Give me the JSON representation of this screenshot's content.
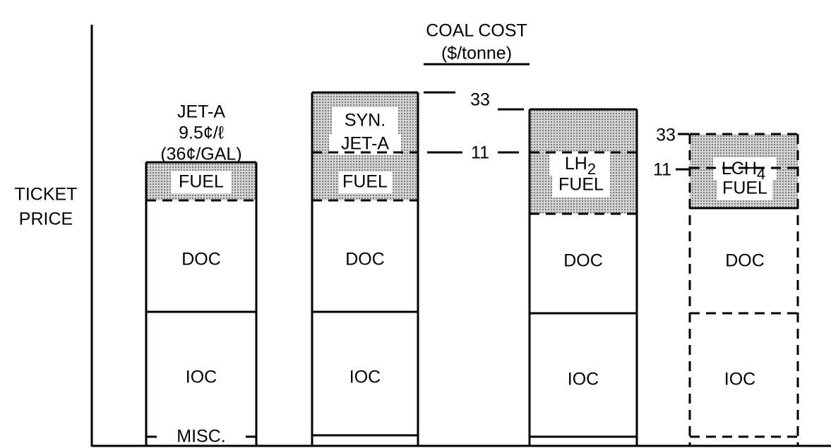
{
  "axis_label": [
    "TICKET",
    "PRICE"
  ],
  "coal_cost": {
    "title": "COAL COST",
    "unit": "($/tonne)",
    "left": {
      "high": "33",
      "low": "11"
    },
    "right": {
      "high": "33",
      "low": "11"
    }
  },
  "bars": [
    {
      "header": [
        "JET-A",
        "9.5¢/ℓ",
        "(36¢/GAL)"
      ],
      "fuel": "FUEL",
      "doc": "DOC",
      "ioc": "IOC",
      "misc": "MISC."
    },
    {
      "fuel_lines": [
        "SYN.",
        "JET-A",
        "FUEL"
      ],
      "doc": "DOC",
      "ioc": "IOC"
    },
    {
      "fuel_name": {
        "main": "LH",
        "sub": "2"
      },
      "fuel": "FUEL",
      "doc": "DOC",
      "ioc": "IOC"
    },
    {
      "fuel_name": {
        "main": "LCH",
        "sub": "4"
      },
      "fuel": "FUEL",
      "doc": "DOC",
      "ioc": "IOC"
    }
  ]
}
